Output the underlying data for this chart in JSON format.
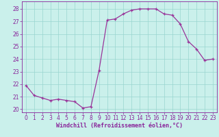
{
  "x": [
    0,
    1,
    2,
    3,
    4,
    5,
    6,
    7,
    8,
    9,
    10,
    11,
    12,
    13,
    14,
    15,
    16,
    17,
    18,
    19,
    20,
    21,
    22,
    23
  ],
  "y": [
    21.9,
    21.1,
    20.9,
    20.7,
    20.8,
    20.7,
    20.6,
    20.1,
    20.2,
    23.1,
    27.1,
    27.2,
    27.6,
    27.9,
    28.0,
    28.0,
    28.0,
    27.6,
    27.5,
    26.8,
    25.4,
    24.8,
    23.9,
    24.0
  ],
  "line_color": "#993399",
  "marker": "+",
  "marker_size": 3,
  "bg_color": "#caf0eb",
  "grid_color": "#99d5cf",
  "xlabel": "Windchill (Refroidissement éolien,°C)",
  "xlim": [
    -0.5,
    23.5
  ],
  "ylim": [
    19.75,
    28.6
  ],
  "yticks": [
    20,
    21,
    22,
    23,
    24,
    25,
    26,
    27,
    28
  ],
  "font_color": "#882299",
  "tick_fontsize": 5.5,
  "xlabel_fontsize": 6.0,
  "line_width": 0.9,
  "marker_edge_width": 0.9
}
